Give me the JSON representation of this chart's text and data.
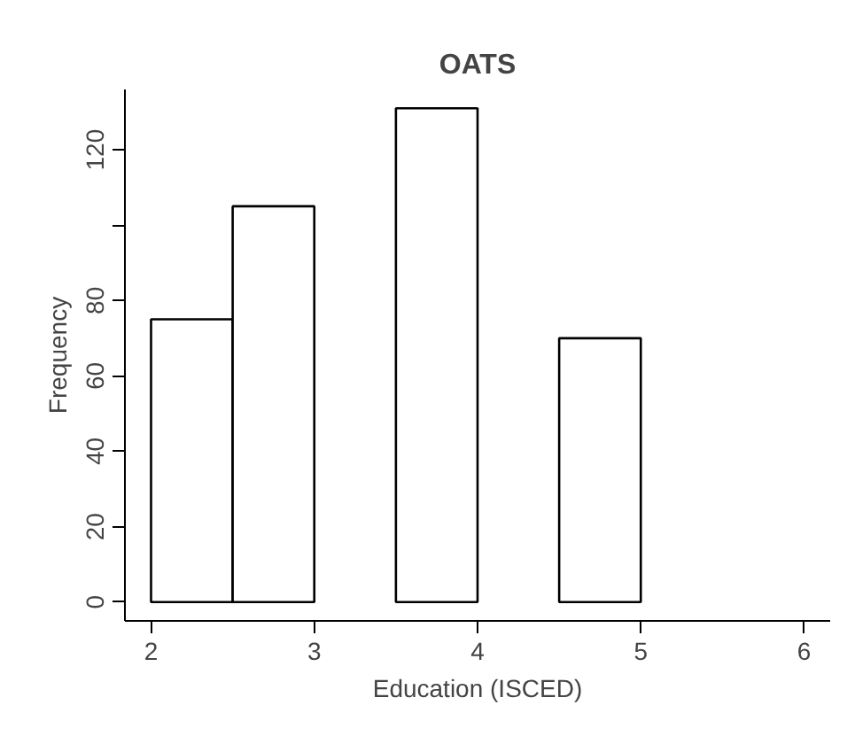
{
  "chart_data": {
    "type": "histogram",
    "title": "OATS",
    "xlabel": "Education (ISCED)",
    "ylabel": "Frequency",
    "bins": [
      2,
      2.5,
      3,
      3.5,
      4,
      4.5,
      5
    ],
    "values": [
      75,
      105,
      0,
      131,
      0,
      70
    ],
    "color": "#ffffff",
    "xlim": [
      1.84,
      6.16
    ],
    "xticks": [
      2,
      3,
      4,
      5,
      6
    ],
    "ylim": [
      -5,
      136
    ],
    "yticks": [
      0,
      20,
      40,
      60,
      80,
      {
        "value": 100,
        "label": null
      },
      120
    ],
    "grid": false,
    "legend": false
  }
}
